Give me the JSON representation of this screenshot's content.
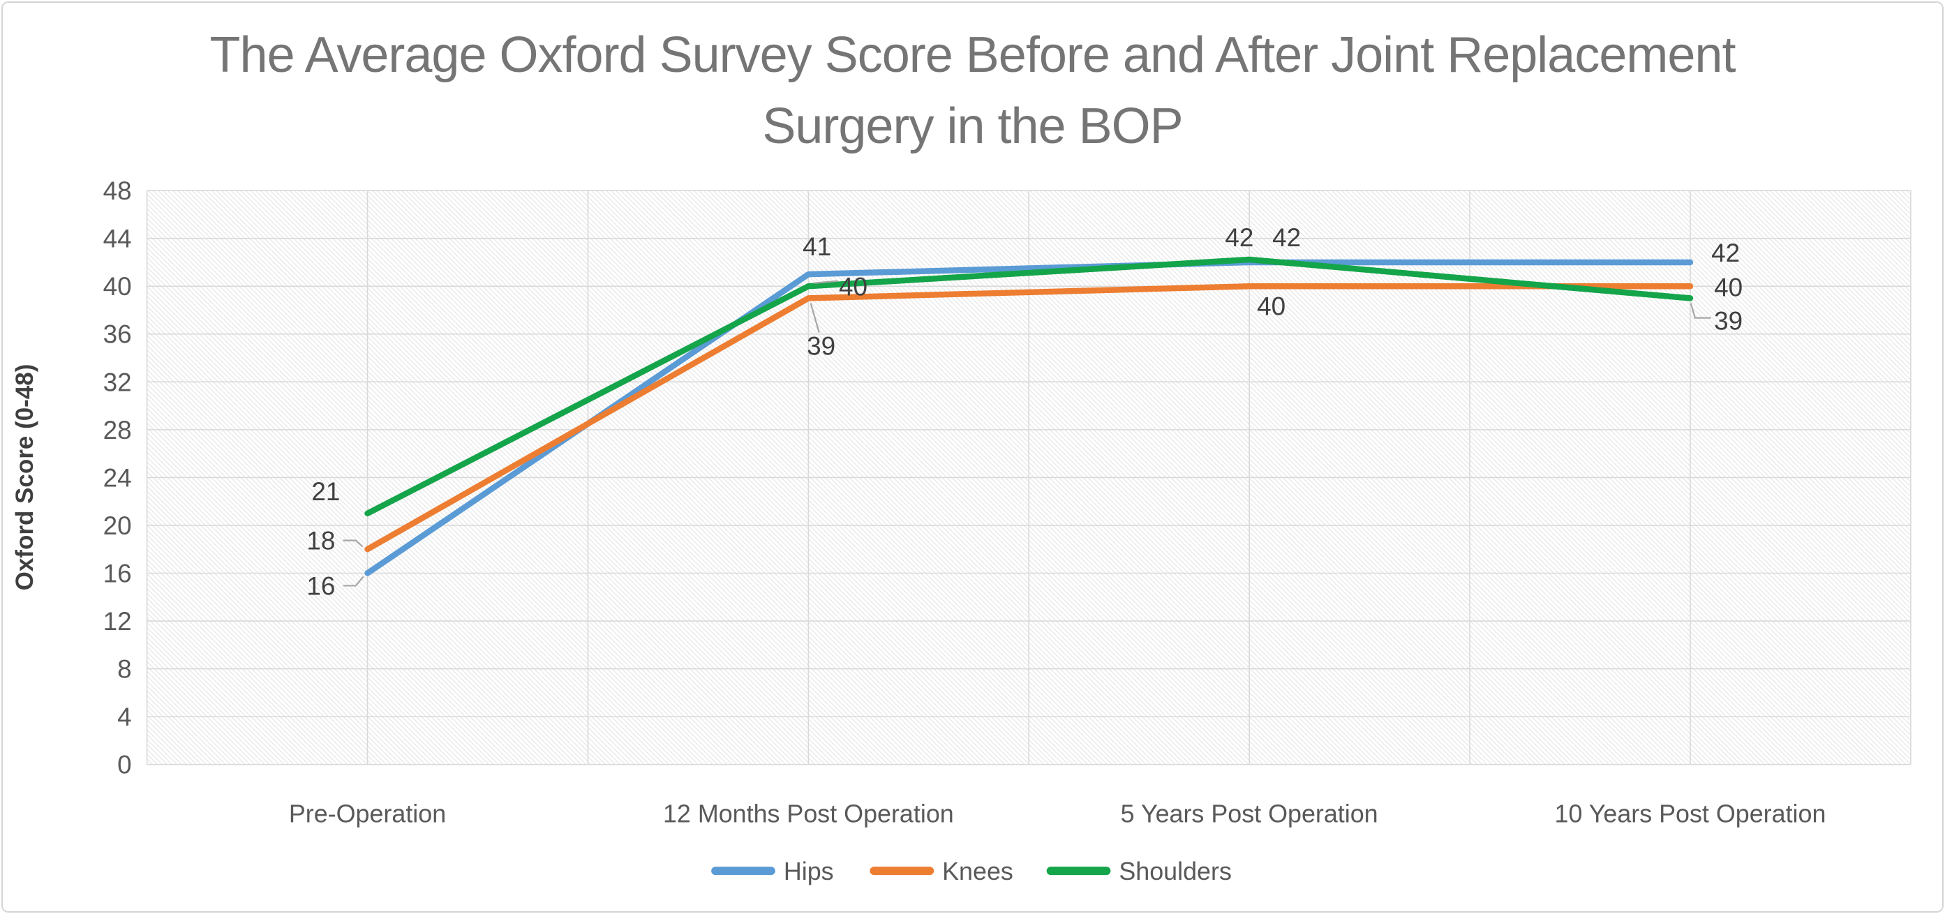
{
  "chart": {
    "title_lines": [
      "The Average Oxford Survey Score Before and After Joint Replacement",
      "Surgery in the BOP"
    ],
    "y_axis_title": "Oxford Score (0-48)"
  },
  "chart_data": {
    "type": "line",
    "title": "The Average Oxford Survey Score Before and After Joint Replacement Surgery in the BOP",
    "categories": [
      "Pre-Operation",
      "12 Months Post Operation",
      "5 Years Post Operation",
      "10 Years Post Operation"
    ],
    "series": [
      {
        "name": "Hips",
        "color": "#5B9BD5",
        "values": [
          16,
          41,
          42,
          42
        ]
      },
      {
        "name": "Knees",
        "color": "#ED7D31",
        "values": [
          18,
          39,
          40,
          40
        ]
      },
      {
        "name": "Shoulders",
        "color": "#14A44A",
        "values": [
          21,
          40,
          42,
          39
        ]
      }
    ],
    "xlabel": "",
    "ylabel": "Oxford Score (0-48)",
    "ylim": [
      0,
      48
    ],
    "ytick_step": 4,
    "grid": true,
    "plot_background": "diagonal-hatch",
    "legend_position": "bottom",
    "data_labels": true,
    "colors": {
      "gridline": "#D9D9D9",
      "hatch": "#E7E7E7",
      "axis_text": "#595959",
      "data_label_text": "#404040",
      "title_text": "#757575",
      "leader_line": "#A6A6A6"
    }
  }
}
